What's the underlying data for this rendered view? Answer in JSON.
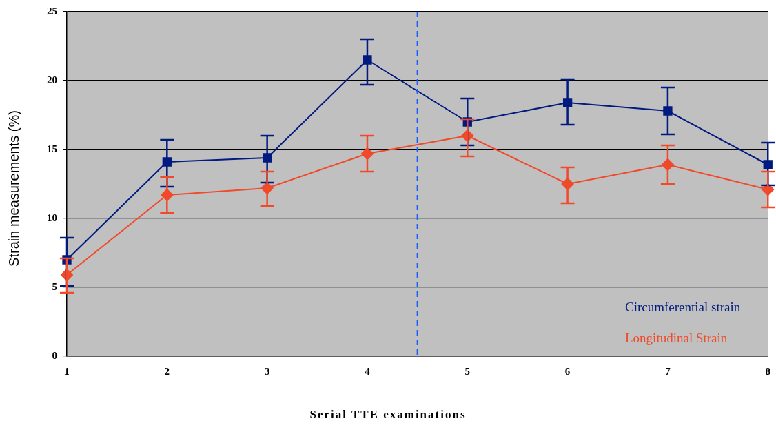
{
  "chart_data": {
    "type": "line",
    "xlabel": "Serial TTE examinations",
    "ylabel": "Strain measurements (%)",
    "x": [
      1,
      2,
      3,
      4,
      5,
      6,
      7,
      8
    ],
    "series": [
      {
        "name": "Circumferential strain",
        "color": "#001a80",
        "marker": "square",
        "values": [
          7.0,
          14.1,
          14.4,
          21.5,
          17.0,
          18.4,
          17.8,
          13.9
        ],
        "errors": [
          [
            5.1,
            8.6
          ],
          [
            12.3,
            15.7
          ],
          [
            12.6,
            16.0
          ],
          [
            19.7,
            23.0
          ],
          [
            15.3,
            18.7
          ],
          [
            16.8,
            20.1
          ],
          [
            16.1,
            19.5
          ],
          [
            12.4,
            15.5
          ]
        ]
      },
      {
        "name": "Longitudinal Strain",
        "color": "#f04a2a",
        "marker": "diamond",
        "values": [
          5.9,
          11.7,
          12.2,
          14.7,
          16.0,
          12.5,
          13.9,
          12.1
        ],
        "errors": [
          [
            4.6,
            7.1
          ],
          [
            10.4,
            13.0
          ],
          [
            10.9,
            13.4
          ],
          [
            13.4,
            16.0
          ],
          [
            14.5,
            17.2
          ],
          [
            11.1,
            13.7
          ],
          [
            12.5,
            15.3
          ],
          [
            10.8,
            13.4
          ]
        ]
      }
    ],
    "xlim": [
      1,
      8
    ],
    "xticks": [
      1,
      2,
      3,
      4,
      5,
      6,
      7,
      8
    ],
    "ylim": [
      0,
      25
    ],
    "yticks": [
      0,
      5,
      10,
      15,
      20,
      25
    ],
    "ref_lines": [
      {
        "axis": "x",
        "value": 4.5,
        "color": "#1a5cff",
        "line_style": "dashed"
      }
    ],
    "grid": "y",
    "legend": "bottom right",
    "line_style": "solid"
  }
}
